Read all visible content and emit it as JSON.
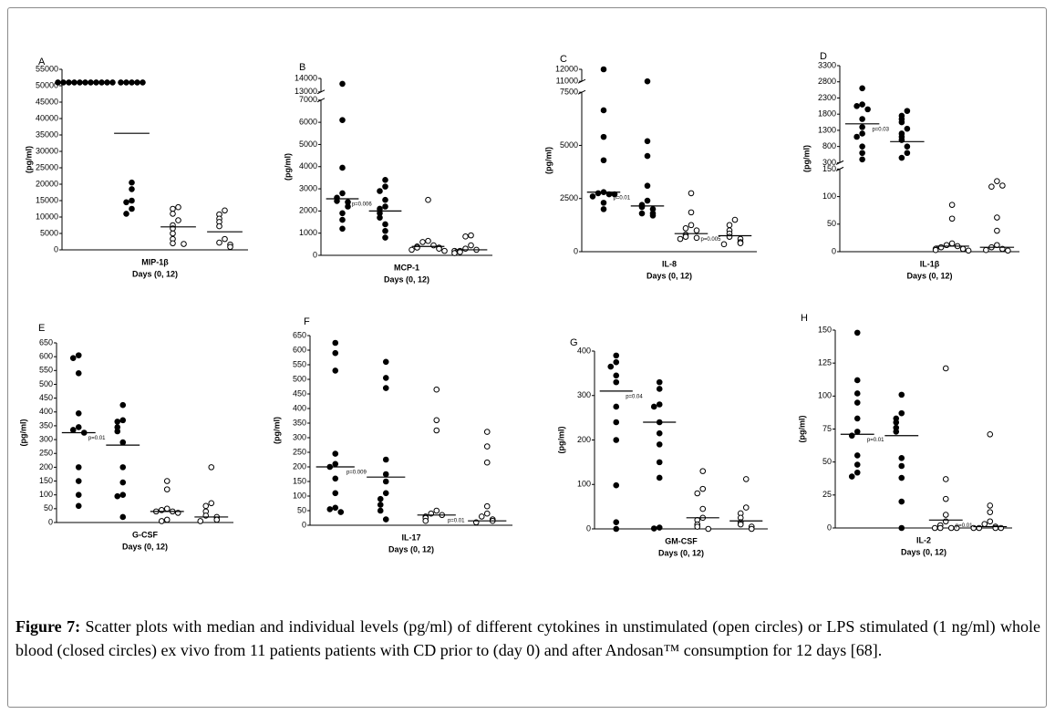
{
  "chart_data": [
    {
      "type": "scatter",
      "panel": "A",
      "category": "MIP-1β",
      "xlabel": "Days (0, 12)",
      "ylabel": "(pg/ml)",
      "ylim": [
        0,
        55000
      ],
      "yticks": [
        0,
        5000,
        10000,
        15000,
        20000,
        25000,
        30000,
        35000,
        40000,
        45000,
        50000,
        55000
      ],
      "series": [
        {
          "color": "#000000",
          "filled": true,
          "values": [
            51000,
            51000,
            51000,
            51000,
            51000,
            51000,
            51000,
            51000,
            51000,
            51000,
            51000
          ],
          "median": 51000
        },
        {
          "color": "#000000",
          "filled": true,
          "values": [
            51000,
            51000,
            51000,
            51000,
            51000,
            20500,
            18500,
            15000,
            14500,
            12500,
            11000
          ],
          "median": 35500
        },
        {
          "color": "#000000",
          "filled": false,
          "values": [
            13000,
            12500,
            11000,
            9000,
            7500,
            6500,
            5000,
            3300,
            2000,
            1800
          ],
          "median": 7000
        },
        {
          "color": "#000000",
          "filled": false,
          "values": [
            12000,
            10800,
            9500,
            8500,
            7200,
            3300,
            2200,
            1600,
            900
          ],
          "median": 5500
        }
      ]
    },
    {
      "type": "scatter",
      "panel": "B",
      "category": "MCP-1",
      "xlabel": "Days (0, 12)",
      "ylabel": "(pg/ml)",
      "ysegments": [
        {
          "ylim": [
            0,
            7000
          ],
          "yticks": [
            0,
            1000,
            2000,
            3000,
            4000,
            5000,
            6000,
            7000
          ]
        },
        {
          "ylim": [
            13000,
            14000
          ],
          "yticks": [
            13000,
            14000
          ]
        }
      ],
      "annotations": [
        "p=0.006"
      ],
      "series": [
        {
          "color": "#000000",
          "filled": true,
          "values": [
            13600,
            6100,
            3950,
            2800,
            2600,
            2450,
            2400,
            2200,
            1900,
            1600,
            1200
          ],
          "median": 2550
        },
        {
          "color": "#000000",
          "filled": true,
          "values": [
            3400,
            3100,
            2900,
            2500,
            2200,
            2100,
            1900,
            1700,
            1400,
            1100,
            800
          ],
          "median": 2000
        },
        {
          "color": "#000000",
          "filled": false,
          "values": [
            2500,
            650,
            600,
            450,
            400,
            350,
            350,
            300,
            250,
            200
          ],
          "median": 400
        },
        {
          "color": "#000000",
          "filled": false,
          "values": [
            900,
            850,
            450,
            300,
            250,
            200,
            150,
            200,
            100
          ],
          "median": 250
        }
      ]
    },
    {
      "type": "scatter",
      "panel": "C",
      "category": "IL-8",
      "xlabel": "Days (0, 12)",
      "ylabel": "(pg/ml)",
      "ysegments": [
        {
          "ylim": [
            0,
            7500
          ],
          "yticks": [
            0,
            2500,
            5000,
            7500
          ]
        },
        {
          "ylim": [
            11000,
            12000
          ],
          "yticks": [
            11000,
            12000
          ]
        }
      ],
      "annotations": [
        "p=0.01",
        "p=0.005"
      ],
      "series": [
        {
          "color": "#000000",
          "filled": true,
          "values": [
            12000,
            6650,
            5400,
            4300,
            2800,
            2750,
            2700,
            2600,
            2300,
            2000,
            2700
          ],
          "median": 2800
        },
        {
          "color": "#000000",
          "filled": true,
          "values": [
            11000,
            5200,
            4500,
            3100,
            2400,
            2200,
            2100,
            2000,
            1800,
            1800,
            1700
          ],
          "median": 2150
        },
        {
          "color": "#000000",
          "filled": false,
          "values": [
            2750,
            1850,
            1250,
            1100,
            1000,
            800,
            700,
            650,
            600
          ],
          "median": 850
        },
        {
          "color": "#000000",
          "filled": false,
          "values": [
            1500,
            1250,
            1000,
            850,
            700,
            600,
            450,
            400,
            350
          ],
          "median": 750
        }
      ]
    },
    {
      "type": "scatter",
      "panel": "D",
      "category": "IL-1β",
      "xlabel": "Days (0, 12)",
      "ylabel": "(pg/ml)",
      "ysegments": [
        {
          "ylim": [
            0,
            150
          ],
          "yticks": [
            0,
            50,
            100,
            150
          ]
        },
        {
          "ylim": [
            300,
            3300
          ],
          "yticks": [
            300,
            800,
            1300,
            1800,
            2300,
            2800,
            3300
          ]
        }
      ],
      "annotations": [
        "p=0.03"
      ],
      "series": [
        {
          "color": "#000000",
          "filled": true,
          "values": [
            2600,
            2100,
            2050,
            1950,
            1650,
            1400,
            1200,
            1100,
            800,
            600,
            400
          ],
          "median": 1500
        },
        {
          "color": "#000000",
          "filled": true,
          "values": [
            1900,
            1750,
            1650,
            1550,
            1350,
            1200,
            1100,
            1000,
            800,
            600,
            450
          ],
          "median": 950
        },
        {
          "color": "#000000",
          "filled": false,
          "values": [
            85,
            60,
            15,
            12,
            10,
            8,
            5,
            5,
            3,
            2
          ],
          "median": 10
        },
        {
          "color": "#000000",
          "filled": false,
          "values": [
            128,
            118,
            120,
            62,
            38,
            12,
            8,
            5,
            3,
            2
          ],
          "median": 8
        }
      ]
    },
    {
      "type": "scatter",
      "panel": "E",
      "category": "G-CSF",
      "xlabel": "Days (0, 12)",
      "ylabel": "(pg/ml)",
      "ylim": [
        0,
        650
      ],
      "yticks": [
        0,
        50,
        100,
        150,
        200,
        250,
        300,
        350,
        400,
        450,
        500,
        550,
        600,
        650
      ],
      "annotations": [
        "p=0.01"
      ],
      "series": [
        {
          "color": "#000000",
          "filled": true,
          "values": [
            605,
            595,
            540,
            395,
            345,
            335,
            325,
            200,
            150,
            100,
            60
          ],
          "median": 325
        },
        {
          "color": "#000000",
          "filled": true,
          "values": [
            425,
            370,
            365,
            345,
            330,
            290,
            200,
            145,
            100,
            95,
            20
          ],
          "median": 280
        },
        {
          "color": "#000000",
          "filled": false,
          "values": [
            150,
            120,
            50,
            45,
            40,
            40,
            35,
            10,
            5
          ],
          "median": 40
        },
        {
          "color": "#000000",
          "filled": false,
          "values": [
            200,
            70,
            60,
            40,
            25,
            20,
            10,
            5
          ],
          "median": 20
        }
      ]
    },
    {
      "type": "scatter",
      "panel": "F",
      "category": "IL-17",
      "xlabel": "Days (0, 12)",
      "ylabel": "(pg/ml)",
      "ylim": [
        0,
        650
      ],
      "yticks": [
        0,
        50,
        100,
        150,
        200,
        250,
        300,
        350,
        400,
        450,
        500,
        550,
        600,
        650
      ],
      "annotations": [
        "p=0.009",
        "p=0.01"
      ],
      "series": [
        {
          "color": "#000000",
          "filled": true,
          "values": [
            625,
            590,
            530,
            245,
            210,
            200,
            160,
            110,
            60,
            55,
            45
          ],
          "median": 200
        },
        {
          "color": "#000000",
          "filled": true,
          "values": [
            560,
            505,
            470,
            225,
            175,
            150,
            110,
            90,
            70,
            50,
            20
          ],
          "median": 165
        },
        {
          "color": "#000000",
          "filled": false,
          "values": [
            465,
            360,
            325,
            50,
            40,
            35,
            30,
            25,
            15
          ],
          "median": 35
        },
        {
          "color": "#000000",
          "filled": false,
          "values": [
            320,
            270,
            215,
            65,
            40,
            30,
            20,
            15,
            10
          ],
          "median": 15
        }
      ]
    },
    {
      "type": "scatter",
      "panel": "G",
      "category": "GM-CSF",
      "xlabel": "Days (0, 12)",
      "ylabel": "(pg/ml)",
      "ylim": [
        0,
        400
      ],
      "yticks": [
        0,
        100,
        200,
        300,
        400
      ],
      "annotations": [
        "p=0.04"
      ],
      "series": [
        {
          "color": "#000000",
          "filled": true,
          "values": [
            390,
            375,
            365,
            345,
            330,
            275,
            240,
            200,
            98,
            15,
            0
          ],
          "median": 310
        },
        {
          "color": "#000000",
          "filled": true,
          "values": [
            330,
            315,
            280,
            275,
            240,
            215,
            190,
            150,
            115,
            3,
            1
          ],
          "median": 240
        },
        {
          "color": "#000000",
          "filled": false,
          "values": [
            130,
            90,
            80,
            45,
            25,
            20,
            10,
            5,
            0
          ],
          "median": 25
        },
        {
          "color": "#000000",
          "filled": false,
          "values": [
            112,
            48,
            35,
            25,
            15,
            10,
            5,
            0
          ],
          "median": 18
        }
      ]
    },
    {
      "type": "scatter",
      "panel": "H",
      "category": "IL-2",
      "xlabel": "Days (0, 12)",
      "ylabel": "(pg/ml)",
      "ylim": [
        0,
        150
      ],
      "yticks": [
        0,
        25,
        50,
        75,
        100,
        125,
        150
      ],
      "annotations": [
        "p=0.01",
        "p=0.01"
      ],
      "series": [
        {
          "color": "#000000",
          "filled": true,
          "values": [
            148,
            112,
            102,
            95,
            83,
            73,
            70,
            55,
            48,
            42,
            39
          ],
          "median": 71
        },
        {
          "color": "#000000",
          "filled": true,
          "values": [
            101,
            87,
            83,
            80,
            76,
            73,
            53,
            47,
            38,
            20,
            0
          ],
          "median": 70
        },
        {
          "color": "#000000",
          "filled": false,
          "values": [
            121,
            37,
            22,
            10,
            5,
            2,
            0,
            0,
            0,
            0
          ],
          "median": 6
        },
        {
          "color": "#000000",
          "filled": false,
          "values": [
            71,
            17,
            12,
            5,
            3,
            1,
            0,
            0,
            0,
            0
          ],
          "median": 1
        }
      ]
    }
  ],
  "caption": {
    "label": "Figure 7:",
    "text": "Scatter plots with median and individual levels (pg/ml) of different cytokines in unstimulated (open circles) or LPS stimulated (1 ng/ml) whole blood (closed circles) ex vivo from 11 patients patients with CD prior to (day 0) and after Andosan™ consumption for 12 days [68]."
  }
}
